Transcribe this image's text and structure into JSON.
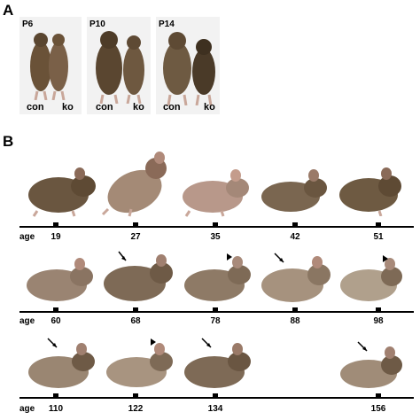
{
  "panel_a": {
    "letter": "A",
    "stages": [
      {
        "age": "P6",
        "left": "con",
        "right": "ko"
      },
      {
        "age": "P10",
        "left": "con",
        "right": "ko"
      },
      {
        "age": "P14",
        "left": "con",
        "right": "ko"
      }
    ]
  },
  "panel_b": {
    "letter": "B",
    "age_word": "age",
    "rows": [
      {
        "ages": [
          "19",
          "27",
          "35",
          "42",
          "51"
        ]
      },
      {
        "ages": [
          "60",
          "68",
          "78",
          "88",
          "98"
        ]
      },
      {
        "ages": [
          "110",
          "122",
          "134",
          "156"
        ]
      }
    ]
  },
  "colors": {
    "fur_dark": "#5a4630",
    "fur_light": "#8a7258",
    "skin": "#b89a86",
    "photo_bg": "#f2f2f2"
  }
}
